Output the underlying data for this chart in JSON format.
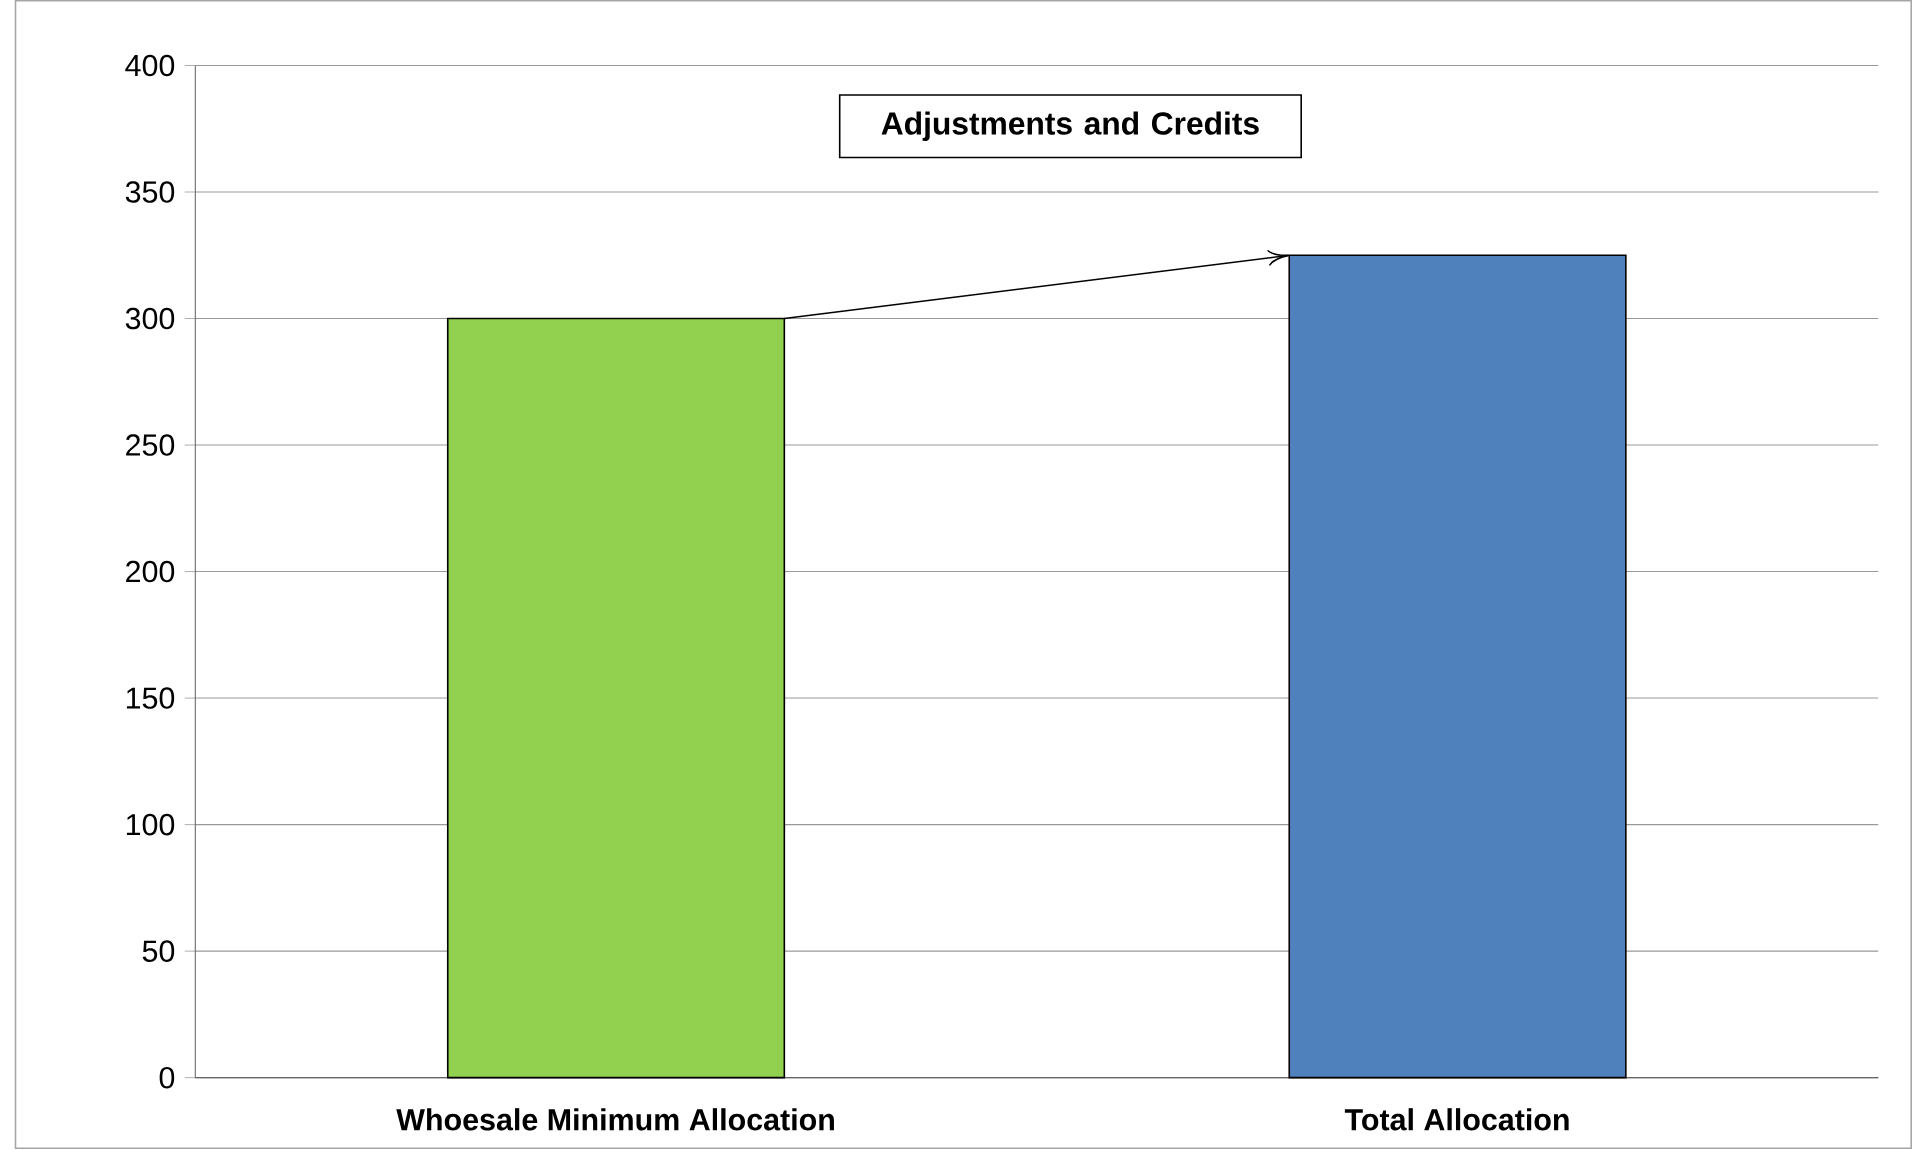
{
  "chart_data": {
    "type": "bar",
    "categories": [
      "Whoesale Minimum Allocation",
      "Total Allocation"
    ],
    "values": [
      300,
      325
    ],
    "colors": [
      "#92d050",
      "#4f81bd"
    ],
    "ylim": [
      0,
      400
    ],
    "yticks": [
      0,
      50,
      100,
      150,
      200,
      250,
      300,
      350,
      400
    ],
    "grid": "y",
    "annotations": [
      "Adjustments and Credits"
    ]
  }
}
